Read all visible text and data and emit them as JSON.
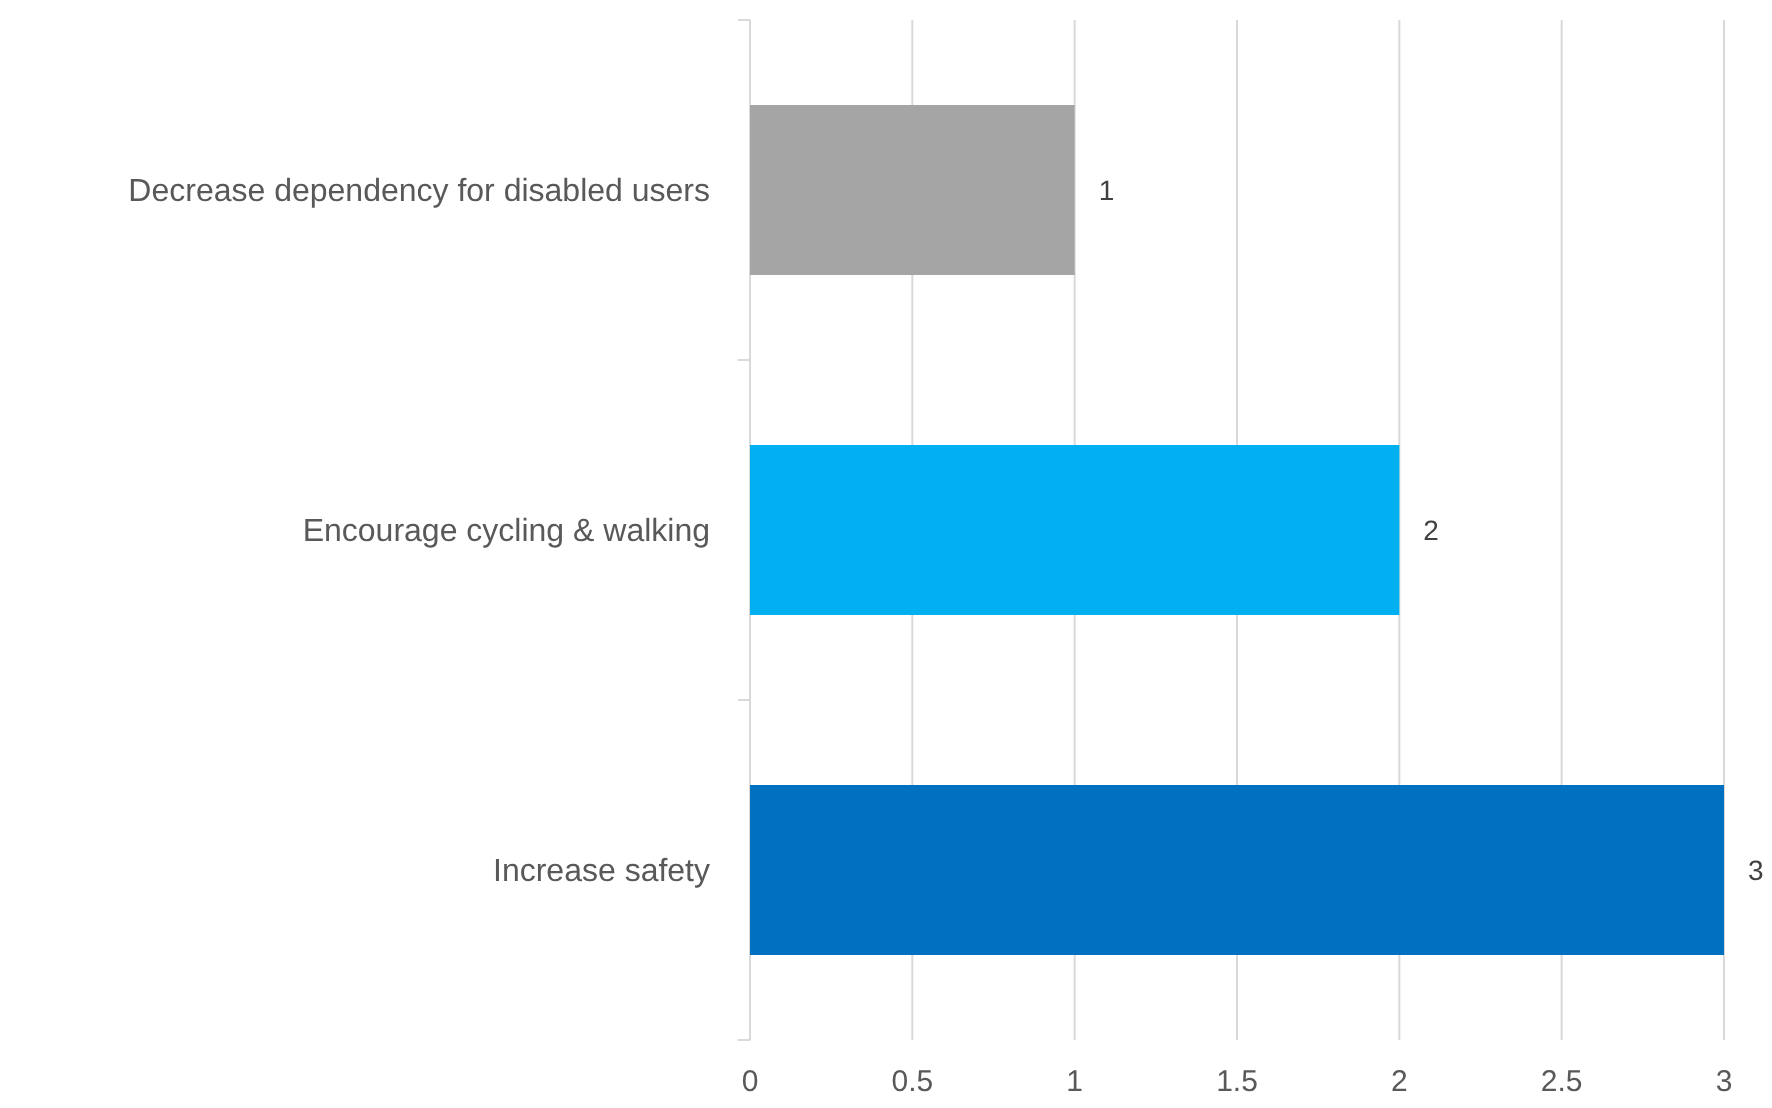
{
  "chart_data": {
    "type": "bar",
    "orientation": "horizontal",
    "categories": [
      "Decrease dependency for disabled users",
      "Encourage cycling & walking",
      "Increase safety"
    ],
    "values": [
      1,
      2,
      3
    ],
    "colors": [
      "#a5a5a5",
      "#00b0f0",
      "#0070c0"
    ],
    "xlim": [
      0,
      3
    ],
    "xticks": [
      0,
      0.5,
      1,
      1.5,
      2,
      2.5,
      3
    ],
    "grid": "x",
    "data_labels": true
  }
}
